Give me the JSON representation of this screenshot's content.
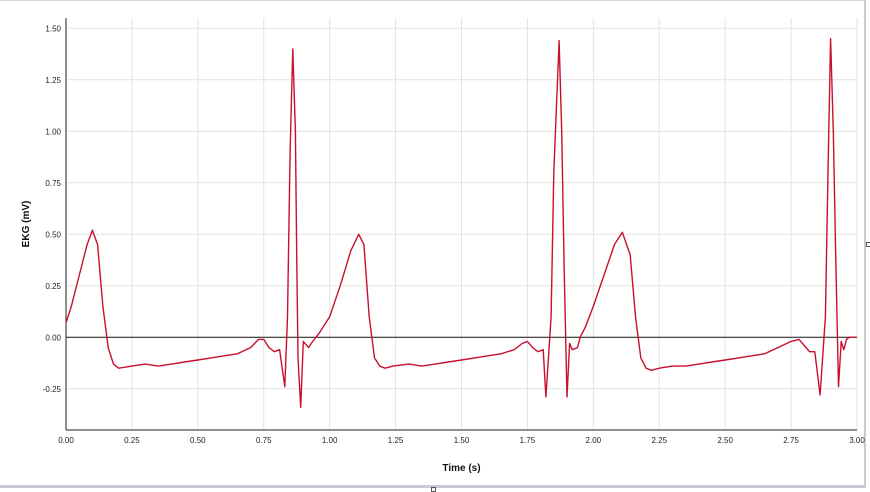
{
  "chart_data": {
    "type": "line",
    "xlabel": "Time (s)",
    "ylabel": "EKG (mV)",
    "xlim": [
      0,
      3.0
    ],
    "ylim": [
      -0.45,
      1.55
    ],
    "x_ticks": [
      "0.00",
      "0.25",
      "0.50",
      "0.75",
      "1.00",
      "1.25",
      "1.50",
      "1.75",
      "2.00",
      "2.25",
      "2.50",
      "2.75",
      "3.00"
    ],
    "y_ticks": [
      "1.50",
      "1.25",
      "1.00",
      "0.75",
      "0.50",
      "0.25",
      "0.00",
      "-0.25"
    ],
    "grid": true,
    "series": [
      {
        "color": "#c8102e",
        "x": [
          0.0,
          0.02,
          0.05,
          0.08,
          0.1,
          0.12,
          0.14,
          0.16,
          0.18,
          0.2,
          0.25,
          0.3,
          0.35,
          0.4,
          0.45,
          0.5,
          0.55,
          0.6,
          0.65,
          0.7,
          0.73,
          0.75,
          0.77,
          0.79,
          0.81,
          0.83,
          0.84,
          0.85,
          0.86,
          0.87,
          0.875,
          0.88,
          0.89,
          0.9,
          0.92,
          0.93,
          0.96,
          1.0,
          1.04,
          1.08,
          1.11,
          1.13,
          1.15,
          1.17,
          1.19,
          1.21,
          1.24,
          1.3,
          1.35,
          1.4,
          1.45,
          1.5,
          1.55,
          1.6,
          1.65,
          1.7,
          1.73,
          1.75,
          1.77,
          1.79,
          1.81,
          1.82,
          1.84,
          1.85,
          1.87,
          1.88,
          1.89,
          1.9,
          1.91,
          1.92,
          1.94,
          1.95,
          1.97,
          2.0,
          2.04,
          2.08,
          2.11,
          2.14,
          2.16,
          2.18,
          2.2,
          2.22,
          2.25,
          2.3,
          2.35,
          2.4,
          2.45,
          2.5,
          2.55,
          2.6,
          2.65,
          2.7,
          2.75,
          2.78,
          2.8,
          2.82,
          2.84,
          2.86,
          2.88,
          2.89,
          2.9,
          2.91,
          2.92,
          2.93,
          2.94,
          2.95,
          2.96,
          2.97,
          2.99,
          3.0
        ],
        "y": [
          0.07,
          0.15,
          0.3,
          0.45,
          0.52,
          0.45,
          0.15,
          -0.05,
          -0.13,
          -0.15,
          -0.14,
          -0.13,
          -0.14,
          -0.13,
          -0.12,
          -0.11,
          -0.1,
          -0.09,
          -0.08,
          -0.05,
          -0.01,
          -0.01,
          -0.05,
          -0.07,
          -0.06,
          -0.24,
          0.1,
          0.9,
          1.4,
          1.0,
          0.4,
          -0.1,
          -0.34,
          -0.02,
          -0.05,
          -0.03,
          0.02,
          0.1,
          0.25,
          0.42,
          0.5,
          0.45,
          0.1,
          -0.1,
          -0.14,
          -0.15,
          -0.14,
          -0.13,
          -0.14,
          -0.13,
          -0.12,
          -0.11,
          -0.1,
          -0.09,
          -0.08,
          -0.06,
          -0.03,
          -0.02,
          -0.05,
          -0.07,
          -0.06,
          -0.29,
          0.1,
          0.8,
          1.44,
          1.0,
          0.3,
          -0.29,
          -0.03,
          -0.06,
          -0.05,
          0.0,
          0.05,
          0.15,
          0.3,
          0.45,
          0.51,
          0.4,
          0.1,
          -0.1,
          -0.15,
          -0.16,
          -0.15,
          -0.14,
          -0.14,
          -0.13,
          -0.12,
          -0.11,
          -0.1,
          -0.09,
          -0.08,
          -0.05,
          -0.02,
          -0.01,
          -0.04,
          -0.07,
          -0.07,
          -0.28,
          0.1,
          0.8,
          1.45,
          1.0,
          0.35,
          -0.24,
          -0.02,
          -0.06,
          -0.01,
          0.0,
          0.0,
          0.0
        ]
      }
    ]
  }
}
